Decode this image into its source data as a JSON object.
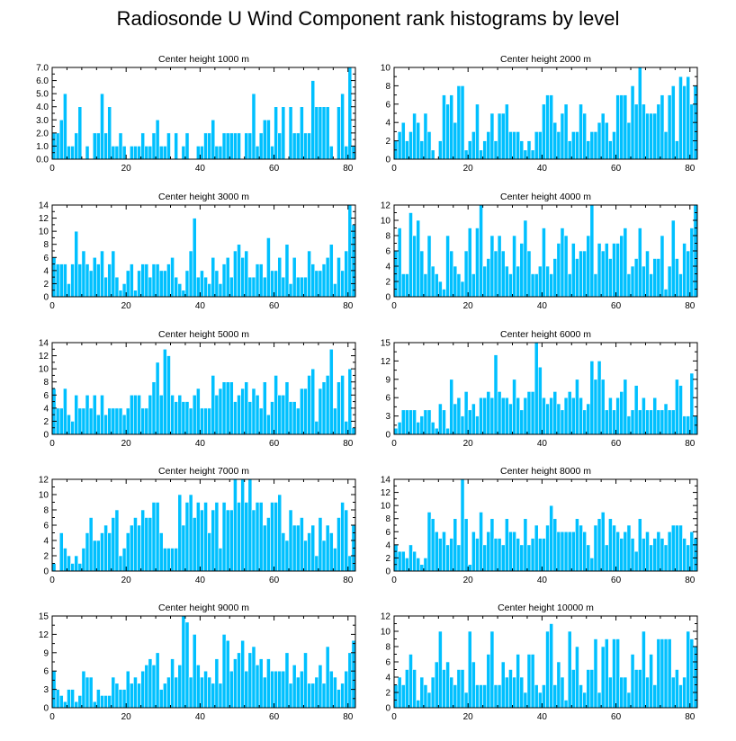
{
  "title": "Radiosonde U Wind Component rank histograms by level",
  "bar_color": "#00c0ff",
  "chart_data": [
    {
      "type": "bar",
      "title": "Center height 1000 m",
      "xlim": [
        0,
        82
      ],
      "ylim": [
        0,
        7
      ],
      "xticks": [
        0,
        20,
        40,
        60,
        80
      ],
      "yticks": [
        0,
        1,
        2,
        3,
        4,
        5,
        6,
        7
      ],
      "ytick_labels": [
        "0.0",
        "1.0",
        "2.0",
        "3.0",
        "4.0",
        "5.0",
        "6.0",
        "7.0"
      ],
      "values": [
        2,
        2,
        3,
        5,
        1,
        1,
        2,
        4,
        0,
        1,
        0,
        2,
        2,
        5,
        2,
        4,
        1,
        1,
        2,
        1,
        0,
        1,
        1,
        1,
        2,
        1,
        1,
        2,
        3,
        1,
        1,
        2,
        0,
        2,
        0,
        1,
        2,
        0,
        0,
        1,
        1,
        2,
        2,
        3,
        1,
        1,
        2,
        2,
        2,
        2,
        2,
        0,
        2,
        2,
        5,
        1,
        2,
        3,
        3,
        1,
        4,
        2,
        4,
        0,
        4,
        2,
        2,
        4,
        2,
        2,
        6,
        4,
        4,
        4,
        4,
        1,
        0,
        4,
        5,
        1,
        7,
        1
      ]
    },
    {
      "type": "bar",
      "title": "Center height 2000 m",
      "xlim": [
        0,
        82
      ],
      "ylim": [
        0,
        10
      ],
      "xticks": [
        0,
        20,
        40,
        60,
        80
      ],
      "yticks": [
        0,
        2,
        4,
        6,
        8,
        10
      ],
      "ytick_labels": [
        "0",
        "2",
        "4",
        "6",
        "8",
        "10"
      ],
      "values": [
        2,
        3,
        4,
        2,
        3,
        5,
        4,
        2,
        5,
        3,
        1,
        0,
        2,
        7,
        6,
        7,
        4,
        8,
        8,
        1,
        2,
        3,
        6,
        1,
        2,
        3,
        5,
        2,
        5,
        5,
        6,
        3,
        3,
        3,
        2,
        1,
        2,
        1,
        3,
        3,
        6,
        7,
        7,
        4,
        3,
        5,
        6,
        2,
        3,
        3,
        6,
        5,
        2,
        3,
        3,
        4,
        5,
        4,
        2,
        3,
        7,
        7,
        7,
        4,
        8,
        6,
        10,
        6,
        5,
        5,
        5,
        6,
        7,
        3,
        7,
        8,
        2,
        9,
        8,
        9,
        6,
        8
      ]
    },
    {
      "type": "bar",
      "title": "Center height 3000 m",
      "xlim": [
        0,
        82
      ],
      "ylim": [
        0,
        14
      ],
      "xticks": [
        0,
        20,
        40,
        60,
        80
      ],
      "yticks": [
        0,
        2,
        4,
        6,
        8,
        10,
        12,
        14
      ],
      "ytick_labels": [
        "0",
        "2",
        "4",
        "6",
        "8",
        "10",
        "12",
        "14"
      ],
      "values": [
        6,
        5,
        5,
        5,
        2,
        5,
        10,
        5,
        7,
        5,
        4,
        6,
        5,
        7,
        3,
        5,
        7,
        3,
        1,
        2,
        4,
        5,
        1,
        4,
        5,
        5,
        3,
        5,
        5,
        4,
        4,
        5,
        6,
        3,
        2,
        1,
        4,
        7,
        12,
        3,
        4,
        3,
        2,
        6,
        4,
        2,
        5,
        6,
        3,
        7,
        8,
        6,
        7,
        3,
        3,
        5,
        5,
        3,
        9,
        4,
        4,
        6,
        3,
        8,
        2,
        6,
        3,
        3,
        3,
        7,
        5,
        4,
        4,
        5,
        6,
        8,
        2,
        6,
        4,
        7,
        14,
        11
      ]
    },
    {
      "type": "bar",
      "title": "Center height 4000 m",
      "xlim": [
        0,
        82
      ],
      "ylim": [
        0,
        12
      ],
      "xticks": [
        0,
        20,
        40,
        60,
        80
      ],
      "yticks": [
        0,
        2,
        4,
        6,
        8,
        10,
        12
      ],
      "ytick_labels": [
        "0",
        "2",
        "4",
        "6",
        "8",
        "10",
        "12"
      ],
      "values": [
        6,
        9,
        3,
        3,
        11,
        8,
        10,
        6,
        3,
        8,
        4,
        3,
        2,
        1,
        8,
        6,
        4,
        3,
        2,
        6,
        9,
        3,
        9,
        12,
        4,
        5,
        8,
        6,
        8,
        6,
        4,
        3,
        8,
        4,
        7,
        10,
        6,
        3,
        3,
        4,
        9,
        4,
        3,
        5,
        7,
        9,
        8,
        3,
        7,
        5,
        6,
        6,
        8,
        12,
        3,
        7,
        6,
        7,
        5,
        7,
        7,
        8,
        9,
        3,
        4,
        5,
        9,
        4,
        6,
        3,
        5,
        5,
        8,
        1,
        4,
        10,
        5,
        3,
        7,
        6,
        9,
        12
      ]
    },
    {
      "type": "bar",
      "title": "Center height 5000 m",
      "xlim": [
        0,
        82
      ],
      "ylim": [
        0,
        14
      ],
      "xticks": [
        0,
        20,
        40,
        60,
        80
      ],
      "yticks": [
        0,
        2,
        4,
        6,
        8,
        10,
        12,
        14
      ],
      "ytick_labels": [
        "0",
        "2",
        "4",
        "6",
        "8",
        "10",
        "12",
        "14"
      ],
      "values": [
        7,
        4,
        4,
        7,
        3,
        2,
        6,
        4,
        4,
        6,
        4,
        6,
        3,
        6,
        3,
        4,
        4,
        4,
        4,
        3,
        4,
        6,
        6,
        6,
        4,
        4,
        6,
        8,
        11,
        6,
        13,
        12,
        6,
        5,
        6,
        5,
        5,
        4,
        6,
        7,
        4,
        4,
        4,
        9,
        6,
        7,
        8,
        8,
        8,
        5,
        6,
        7,
        8,
        5,
        7,
        6,
        4,
        8,
        3,
        5,
        9,
        6,
        6,
        8,
        5,
        5,
        4,
        7,
        7,
        9,
        10,
        2,
        7,
        8,
        9,
        13,
        4,
        8,
        9,
        2,
        10,
        1
      ]
    },
    {
      "type": "bar",
      "title": "Center height 6000 m",
      "xlim": [
        0,
        82
      ],
      "ylim": [
        0,
        15
      ],
      "xticks": [
        0,
        20,
        40,
        60,
        80
      ],
      "yticks": [
        0,
        3,
        6,
        9,
        12,
        15
      ],
      "ytick_labels": [
        "0",
        "3",
        "6",
        "9",
        "12",
        "15"
      ],
      "values": [
        1,
        2,
        4,
        4,
        4,
        4,
        2,
        3,
        4,
        4,
        2,
        1,
        5,
        4,
        1,
        9,
        5,
        6,
        3,
        7,
        4,
        5,
        3,
        6,
        6,
        7,
        6,
        13,
        7,
        6,
        6,
        5,
        9,
        6,
        4,
        6,
        7,
        7,
        15,
        11,
        6,
        5,
        6,
        7,
        5,
        4,
        6,
        7,
        6,
        9,
        6,
        4,
        5,
        12,
        9,
        12,
        9,
        4,
        6,
        4,
        6,
        7,
        9,
        3,
        4,
        8,
        4,
        6,
        4,
        4,
        6,
        4,
        4,
        5,
        4,
        4,
        9,
        8,
        3,
        3,
        10,
        3
      ]
    },
    {
      "type": "bar",
      "title": "Center height 7000 m",
      "xlim": [
        0,
        82
      ],
      "ylim": [
        0,
        12
      ],
      "xticks": [
        0,
        20,
        40,
        60,
        80
      ],
      "yticks": [
        0,
        2,
        4,
        6,
        8,
        10,
        12
      ],
      "ytick_labels": [
        "0",
        "2",
        "4",
        "6",
        "8",
        "10",
        "12"
      ],
      "values": [
        1,
        0,
        5,
        3,
        2,
        1,
        2,
        1,
        3,
        5,
        7,
        4,
        4,
        5,
        6,
        5,
        7,
        8,
        2,
        3,
        5,
        6,
        7,
        6,
        8,
        7,
        7,
        9,
        9,
        5,
        3,
        3,
        3,
        3,
        10,
        6,
        9,
        10,
        7,
        9,
        8,
        9,
        5,
        8,
        9,
        3,
        9,
        8,
        8,
        12,
        9,
        12,
        9,
        12,
        8,
        9,
        9,
        6,
        7,
        9,
        9,
        10,
        5,
        4,
        8,
        6,
        6,
        7,
        4,
        5,
        6,
        2,
        7,
        4,
        6,
        5,
        3,
        7,
        9,
        8,
        2,
        6
      ]
    },
    {
      "type": "bar",
      "title": "Center height 8000 m",
      "xlim": [
        0,
        82
      ],
      "ylim": [
        0,
        14
      ],
      "xticks": [
        0,
        20,
        40,
        60,
        80
      ],
      "yticks": [
        0,
        2,
        4,
        6,
        8,
        10,
        12,
        14
      ],
      "ytick_labels": [
        "0",
        "2",
        "4",
        "6",
        "8",
        "10",
        "12",
        "14"
      ],
      "values": [
        4,
        3,
        3,
        2,
        4,
        3,
        2,
        1,
        2,
        9,
        8,
        6,
        5,
        6,
        4,
        5,
        8,
        4,
        14,
        8,
        1,
        6,
        5,
        9,
        4,
        6,
        8,
        5,
        5,
        4,
        8,
        6,
        6,
        5,
        4,
        8,
        4,
        5,
        7,
        5,
        5,
        7,
        10,
        8,
        6,
        6,
        6,
        6,
        6,
        8,
        7,
        6,
        4,
        2,
        7,
        8,
        9,
        4,
        8,
        7,
        6,
        5,
        6,
        7,
        5,
        3,
        8,
        5,
        6,
        4,
        5,
        6,
        5,
        4,
        6,
        7,
        7,
        7,
        5,
        4,
        6,
        5
      ]
    },
    {
      "type": "bar",
      "title": "Center height 9000 m",
      "xlim": [
        0,
        82
      ],
      "ylim": [
        0,
        15
      ],
      "xticks": [
        0,
        20,
        40,
        60,
        80
      ],
      "yticks": [
        0,
        3,
        6,
        9,
        12,
        15
      ],
      "ytick_labels": [
        "0",
        "3",
        "6",
        "9",
        "12",
        "15"
      ],
      "values": [
        6,
        3,
        2,
        1,
        3,
        3,
        1,
        2,
        6,
        5,
        5,
        1,
        3,
        2,
        2,
        2,
        5,
        4,
        3,
        3,
        6,
        4,
        5,
        4,
        6,
        7,
        8,
        7,
        9,
        3,
        4,
        5,
        8,
        5,
        7,
        15,
        14,
        5,
        12,
        7,
        5,
        6,
        5,
        4,
        8,
        4,
        12,
        11,
        6,
        8,
        9,
        11,
        6,
        9,
        10,
        7,
        8,
        5,
        8,
        6,
        6,
        6,
        6,
        9,
        4,
        7,
        5,
        6,
        9,
        4,
        4,
        5,
        7,
        4,
        10,
        6,
        5,
        3,
        4,
        6,
        9,
        11
      ]
    },
    {
      "type": "bar",
      "title": "Center height 10000 m",
      "xlim": [
        0,
        82
      ],
      "ylim": [
        0,
        12
      ],
      "xticks": [
        0,
        20,
        40,
        60,
        80
      ],
      "yticks": [
        0,
        2,
        4,
        6,
        8,
        10,
        12
      ],
      "ytick_labels": [
        "0",
        "2",
        "4",
        "6",
        "8",
        "10",
        "12"
      ],
      "values": [
        3,
        4,
        3,
        5,
        7,
        5,
        1,
        4,
        3,
        2,
        4,
        6,
        10,
        5,
        6,
        4,
        3,
        5,
        5,
        2,
        10,
        6,
        3,
        3,
        3,
        7,
        10,
        3,
        3,
        6,
        4,
        5,
        4,
        7,
        4,
        2,
        7,
        7,
        3,
        2,
        3,
        10,
        11,
        3,
        6,
        4,
        1,
        10,
        5,
        8,
        3,
        2,
        5,
        5,
        9,
        2,
        8,
        9,
        4,
        9,
        9,
        4,
        4,
        2,
        7,
        5,
        5,
        10,
        4,
        7,
        3,
        9,
        9,
        9,
        9,
        4,
        5,
        3,
        4,
        10,
        9,
        8
      ]
    }
  ]
}
